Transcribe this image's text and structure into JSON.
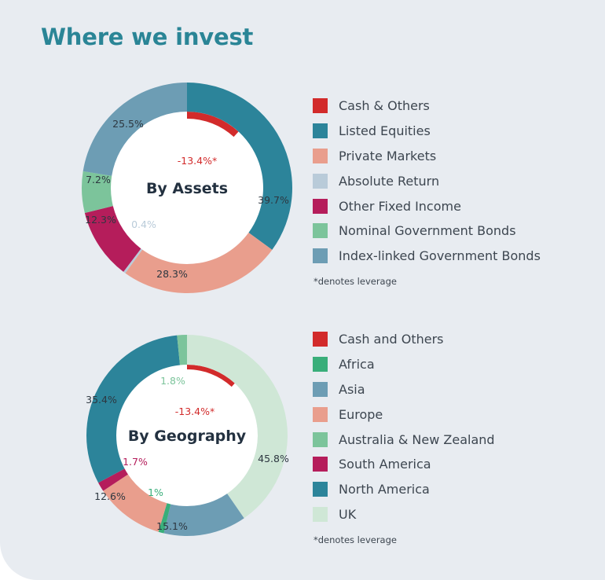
{
  "page": {
    "title": "Where we invest"
  },
  "colors": {
    "cash": "#d22b2b",
    "listed_equities": "#2c849a",
    "private_markets": "#e99e8d",
    "absolute_return": "#b9cbd9",
    "other_fixed_income": "#b51d5b",
    "nominal_gov_bonds": "#7cc49b",
    "index_linked_gov_bonds": "#6d9db4",
    "africa": "#39ae7a",
    "asia": "#6d9db4",
    "europe": "#e99e8d",
    "australia_nz": "#7cc49b",
    "south_america": "#b51d5b",
    "north_america": "#2c849a",
    "uk": "#cfe7d6",
    "label_dark": "#2d3740"
  },
  "chart_data": [
    {
      "type": "pie",
      "title": "By Assets",
      "leverage": {
        "name": "Cash & Others",
        "value": -13.4,
        "label": "-13.4%*"
      },
      "series": [
        {
          "name": "Listed Equities",
          "value": 39.7,
          "label": "39.7%"
        },
        {
          "name": "Private Markets",
          "value": 28.3,
          "label": "28.3%"
        },
        {
          "name": "Absolute Return",
          "value": 0.4,
          "label": "0.4%"
        },
        {
          "name": "Other Fixed Income",
          "value": 12.3,
          "label": "12.3%"
        },
        {
          "name": "Nominal Government Bonds",
          "value": 7.2,
          "label": "7.2%"
        },
        {
          "name": "Index-linked Government Bonds",
          "value": 25.5,
          "label": "25.5%"
        }
      ],
      "legend": [
        {
          "label": "Cash & Others",
          "color": "#d22b2b"
        },
        {
          "label": "Listed Equities",
          "color": "#2c849a"
        },
        {
          "label": "Private Markets",
          "color": "#e99e8d"
        },
        {
          "label": "Absolute Return",
          "color": "#b9cbd9"
        },
        {
          "label": "Other Fixed Income",
          "color": "#b51d5b"
        },
        {
          "label": "Nominal Government Bonds",
          "color": "#7cc49b"
        },
        {
          "label": "Index-linked Government Bonds",
          "color": "#6d9db4"
        }
      ],
      "note": "*denotes leverage"
    },
    {
      "type": "pie",
      "title": "By Geography",
      "leverage": {
        "name": "Cash and Others",
        "value": -13.4,
        "label": "-13.4%*"
      },
      "series": [
        {
          "name": "UK",
          "value": 45.8,
          "label": "45.8%"
        },
        {
          "name": "Asia",
          "value": 15.1,
          "label": "15.1%"
        },
        {
          "name": "Africa",
          "value": 1.0,
          "label": "1%"
        },
        {
          "name": "Europe",
          "value": 12.6,
          "label": "12.6%"
        },
        {
          "name": "South America",
          "value": 1.7,
          "label": "1.7%"
        },
        {
          "name": "North America",
          "value": 35.4,
          "label": "35.4%"
        },
        {
          "name": "Australia & New Zealand",
          "value": 1.8,
          "label": "1.8%"
        }
      ],
      "legend": [
        {
          "label": "Cash and Others",
          "color": "#d22b2b"
        },
        {
          "label": "Africa",
          "color": "#39ae7a"
        },
        {
          "label": "Asia",
          "color": "#6d9db4"
        },
        {
          "label": "Europe",
          "color": "#e99e8d"
        },
        {
          "label": "Australia & New Zealand",
          "color": "#7cc49b"
        },
        {
          "label": "South America",
          "color": "#b51d5b"
        },
        {
          "label": "North America",
          "color": "#2c849a"
        },
        {
          "label": "UK",
          "color": "#cfe7d6"
        }
      ],
      "note": "*denotes leverage"
    }
  ]
}
